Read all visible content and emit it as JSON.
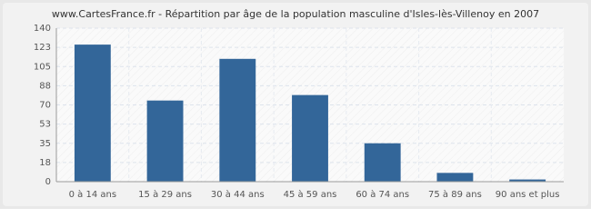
{
  "chart_data": {
    "type": "bar",
    "title": "www.CartesFrance.fr - Répartition par âge de la population masculine d'Isles-lès-Villenoy en 2007",
    "categories": [
      "0 à 14 ans",
      "15 à 29 ans",
      "30 à 44 ans",
      "45 à 59 ans",
      "60 à 74 ans",
      "75 à 89 ans",
      "90 ans et plus"
    ],
    "values": [
      125,
      74,
      112,
      79,
      35,
      8,
      2
    ],
    "color": "#336699",
    "ylim": [
      0,
      140
    ],
    "yticks": [
      0,
      {
        "value": 17.5,
        "label": "18"
      },
      35,
      {
        "value": 52.5,
        "label": "53"
      },
      70,
      {
        "value": 87.5,
        "label": "88"
      },
      105,
      {
        "value": 122.5,
        "label": "123"
      },
      140
    ],
    "grid": true
  }
}
